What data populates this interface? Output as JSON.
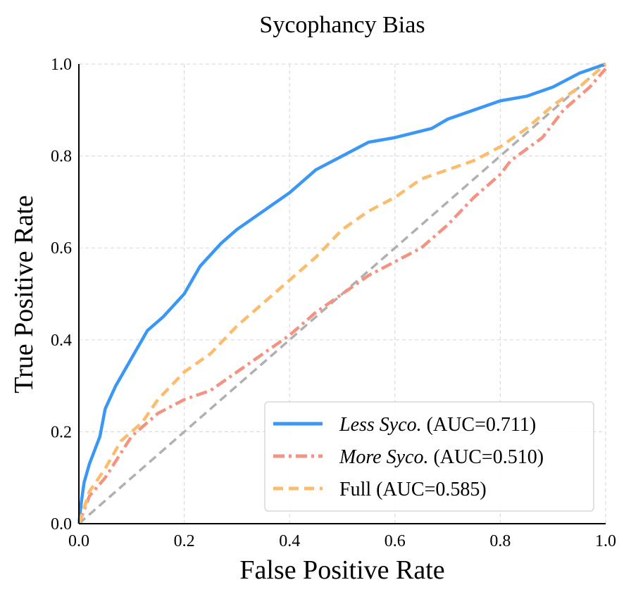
{
  "chart_data": {
    "type": "line",
    "title": "Sycophancy Bias",
    "xlabel": "False Positive Rate",
    "ylabel": "True Positive Rate",
    "xlim": [
      0,
      1
    ],
    "ylim": [
      0,
      1
    ],
    "xticks": [
      "0.0",
      "0.2",
      "0.4",
      "0.6",
      "0.8",
      "1.0"
    ],
    "yticks": [
      "0.0",
      "0.2",
      "0.4",
      "0.6",
      "0.8",
      "1.0"
    ],
    "grid": true,
    "legend_position": "bottom-right",
    "diagonal": {
      "color": "#b0b0b0",
      "style": "dashed"
    },
    "series": [
      {
        "name_italic": "Less Syco.",
        "name_rest": " (AUC=0.711)",
        "color": "#3b97f5",
        "style": "solid",
        "x": [
          0,
          0.005,
          0.01,
          0.02,
          0.04,
          0.05,
          0.07,
          0.1,
          0.13,
          0.16,
          0.2,
          0.23,
          0.27,
          0.3,
          0.35,
          0.4,
          0.45,
          0.5,
          0.55,
          0.6,
          0.67,
          0.7,
          0.8,
          0.85,
          0.9,
          0.95,
          1
        ],
        "y": [
          0,
          0.05,
          0.09,
          0.13,
          0.19,
          0.25,
          0.3,
          0.36,
          0.42,
          0.45,
          0.5,
          0.56,
          0.61,
          0.64,
          0.68,
          0.72,
          0.77,
          0.8,
          0.83,
          0.84,
          0.86,
          0.88,
          0.92,
          0.93,
          0.95,
          0.98,
          1
        ]
      },
      {
        "name_italic": "More Syco.",
        "name_rest": " (AUC=0.510)",
        "color": "#f59383",
        "style": "dashdot",
        "x": [
          0,
          0.02,
          0.05,
          0.1,
          0.15,
          0.2,
          0.25,
          0.3,
          0.35,
          0.4,
          0.45,
          0.5,
          0.55,
          0.6,
          0.65,
          0.7,
          0.75,
          0.8,
          0.82,
          0.88,
          0.92,
          0.97,
          1
        ],
        "y": [
          0,
          0.06,
          0.1,
          0.19,
          0.24,
          0.27,
          0.29,
          0.33,
          0.37,
          0.41,
          0.46,
          0.5,
          0.54,
          0.57,
          0.6,
          0.65,
          0.71,
          0.76,
          0.79,
          0.84,
          0.9,
          0.95,
          0.99
        ]
      },
      {
        "name_italic": "",
        "name_rest": "Full (AUC=0.585)",
        "color": "#fbbd6d",
        "style": "dashed",
        "x": [
          0,
          0.02,
          0.05,
          0.08,
          0.12,
          0.15,
          0.2,
          0.25,
          0.3,
          0.35,
          0.4,
          0.45,
          0.5,
          0.55,
          0.6,
          0.65,
          0.7,
          0.75,
          0.8,
          0.85,
          0.9,
          0.95,
          1
        ],
        "y": [
          0,
          0.07,
          0.12,
          0.18,
          0.22,
          0.27,
          0.33,
          0.37,
          0.43,
          0.48,
          0.53,
          0.58,
          0.64,
          0.68,
          0.71,
          0.75,
          0.77,
          0.79,
          0.82,
          0.86,
          0.91,
          0.95,
          1
        ]
      }
    ]
  }
}
